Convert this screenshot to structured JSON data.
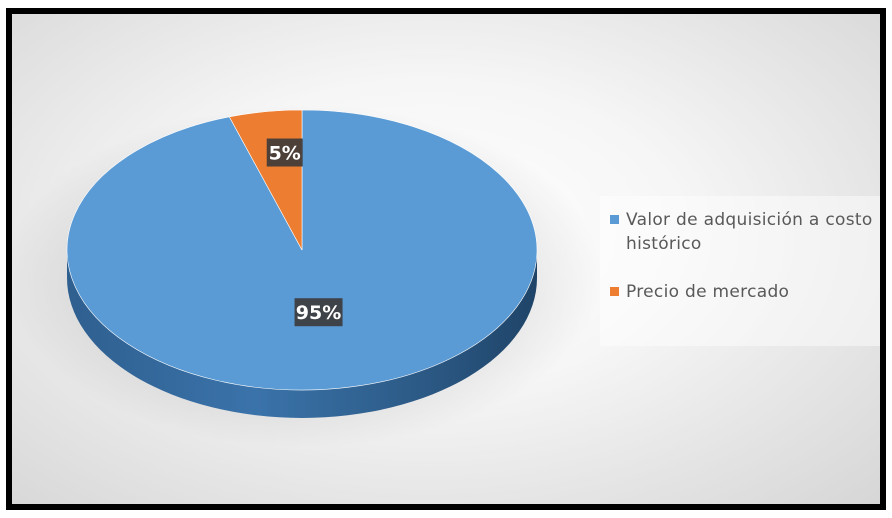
{
  "chart_data": {
    "type": "pie",
    "variant": "3d",
    "title": "",
    "labels": [
      "Valor de adquisición a costo histórico",
      "Precio de mercado"
    ],
    "values": [
      95,
      5
    ],
    "data_labels": [
      "95%",
      "5%"
    ],
    "colors": [
      "#5b9bd5",
      "#ed7d31"
    ],
    "legend_position": "right"
  },
  "legend": {
    "items": [
      {
        "label": "Valor de adquisición a costo histórico",
        "color": "#5b9bd5"
      },
      {
        "label": "Precio de mercado",
        "color": "#ed7d31"
      }
    ]
  }
}
